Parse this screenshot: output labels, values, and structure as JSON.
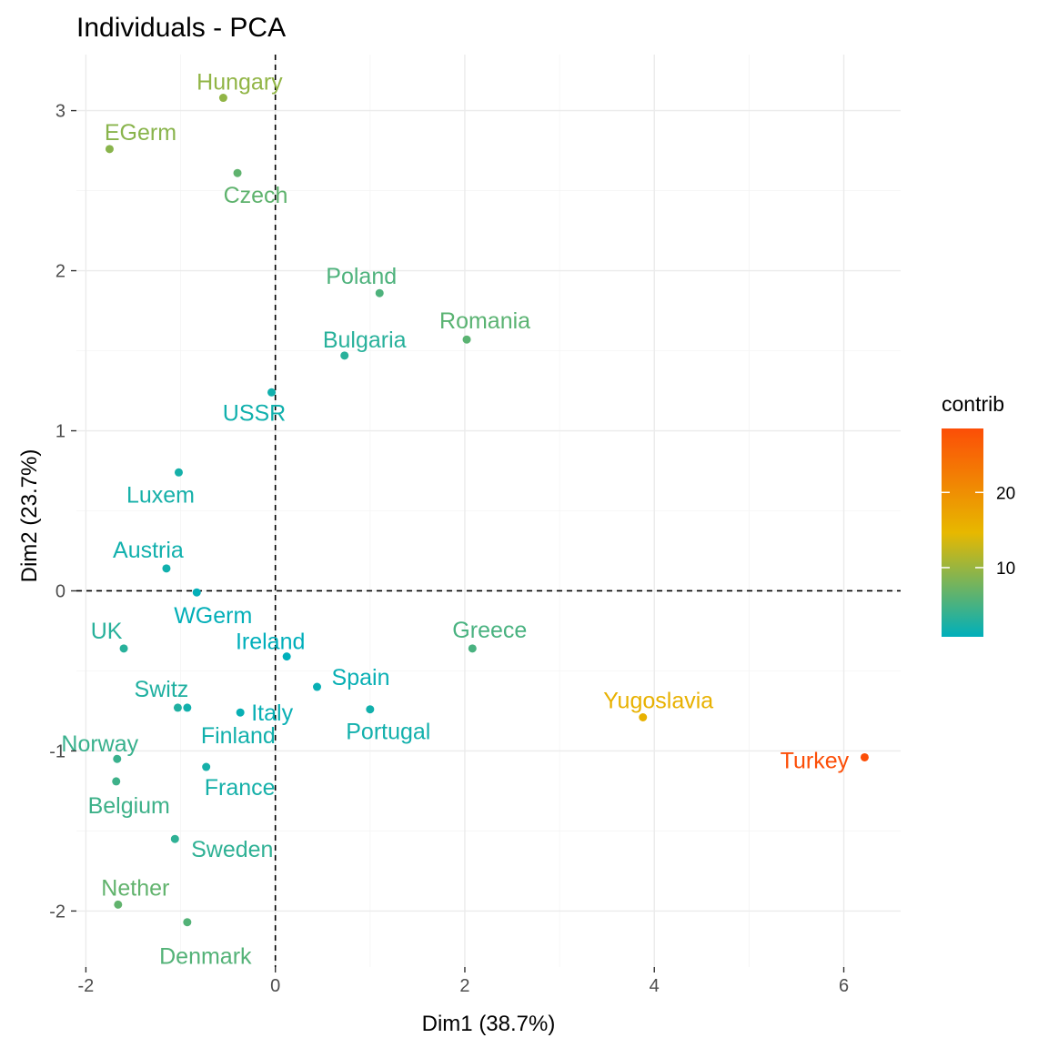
{
  "chart_data": {
    "type": "scatter",
    "title": "Individuals - PCA",
    "xlabel": "Dim1 (38.7%)",
    "ylabel": "Dim2 (23.7%)",
    "xlim": [
      -2.1,
      6.6
    ],
    "ylim": [
      -2.35,
      3.35
    ],
    "xticks": [
      -2,
      0,
      2,
      4,
      6
    ],
    "yticks": [
      -2,
      -1,
      0,
      1,
      2,
      3
    ],
    "grid": true,
    "reference_lines": {
      "x": 0,
      "y": 0
    },
    "legend": {
      "title": "contrib",
      "position": "right",
      "ticks": [
        10,
        20
      ],
      "range": [
        0.8,
        28.5
      ],
      "colors": [
        "#00AFBB",
        "#E7B800",
        "#FC4E07"
      ]
    },
    "points": [
      {
        "name": "Hungary",
        "x": -0.55,
        "y": 3.08,
        "contrib": 9.5
      },
      {
        "name": "EGerm",
        "x": -1.75,
        "y": 2.76,
        "contrib": 9.0
      },
      {
        "name": "Czech",
        "x": -0.4,
        "y": 2.61,
        "contrib": 6.5
      },
      {
        "name": "Poland",
        "x": 1.1,
        "y": 1.86,
        "contrib": 5.5
      },
      {
        "name": "Romania",
        "x": 2.02,
        "y": 1.57,
        "contrib": 6.2
      },
      {
        "name": "Bulgaria",
        "x": 0.73,
        "y": 1.47,
        "contrib": 3.2
      },
      {
        "name": "USSR",
        "x": -0.04,
        "y": 1.24,
        "contrib": 1.8
      },
      {
        "name": "Luxem",
        "x": -1.02,
        "y": 0.74,
        "contrib": 2.1
      },
      {
        "name": "Austria",
        "x": -1.15,
        "y": 0.14,
        "contrib": 1.8
      },
      {
        "name": "WGerm",
        "x": -0.83,
        "y": -0.01,
        "contrib": 1.0
      },
      {
        "name": "Ireland",
        "x": 0.12,
        "y": -0.41,
        "contrib": 0.8
      },
      {
        "name": "UK",
        "x": -1.6,
        "y": -0.36,
        "contrib": 3.2
      },
      {
        "name": "Greece",
        "x": 2.08,
        "y": -0.36,
        "contrib": 5.2
      },
      {
        "name": "Spain",
        "x": 0.44,
        "y": -0.6,
        "contrib": 1.3
      },
      {
        "name": "Switz",
        "x": -1.03,
        "y": -0.73,
        "contrib": 2.7
      },
      {
        "name": "Italy",
        "x": -0.37,
        "y": -0.76,
        "contrib": 1.3
      },
      {
        "name": "Portugal",
        "x": 1.0,
        "y": -0.74,
        "contrib": 1.9
      },
      {
        "name": "Yugoslavia",
        "x": 3.88,
        "y": -0.79,
        "contrib": 15.5
      },
      {
        "name": "Finland",
        "x": -0.93,
        "y": -0.73,
        "contrib": 1.9
      },
      {
        "name": "Norway",
        "x": -1.67,
        "y": -1.05,
        "contrib": 4.2
      },
      {
        "name": "Turkey",
        "x": 6.22,
        "y": -1.04,
        "contrib": 28.5
      },
      {
        "name": "France",
        "x": -0.73,
        "y": -1.1,
        "contrib": 2.1
      },
      {
        "name": "Belgium",
        "x": -1.68,
        "y": -1.19,
        "contrib": 4.5
      },
      {
        "name": "Sweden",
        "x": -1.06,
        "y": -1.55,
        "contrib": 3.6
      },
      {
        "name": "Nether",
        "x": -1.66,
        "y": -1.96,
        "contrib": 6.6
      },
      {
        "name": "Denmark",
        "x": -0.93,
        "y": -2.07,
        "contrib": 5.8
      }
    ]
  }
}
